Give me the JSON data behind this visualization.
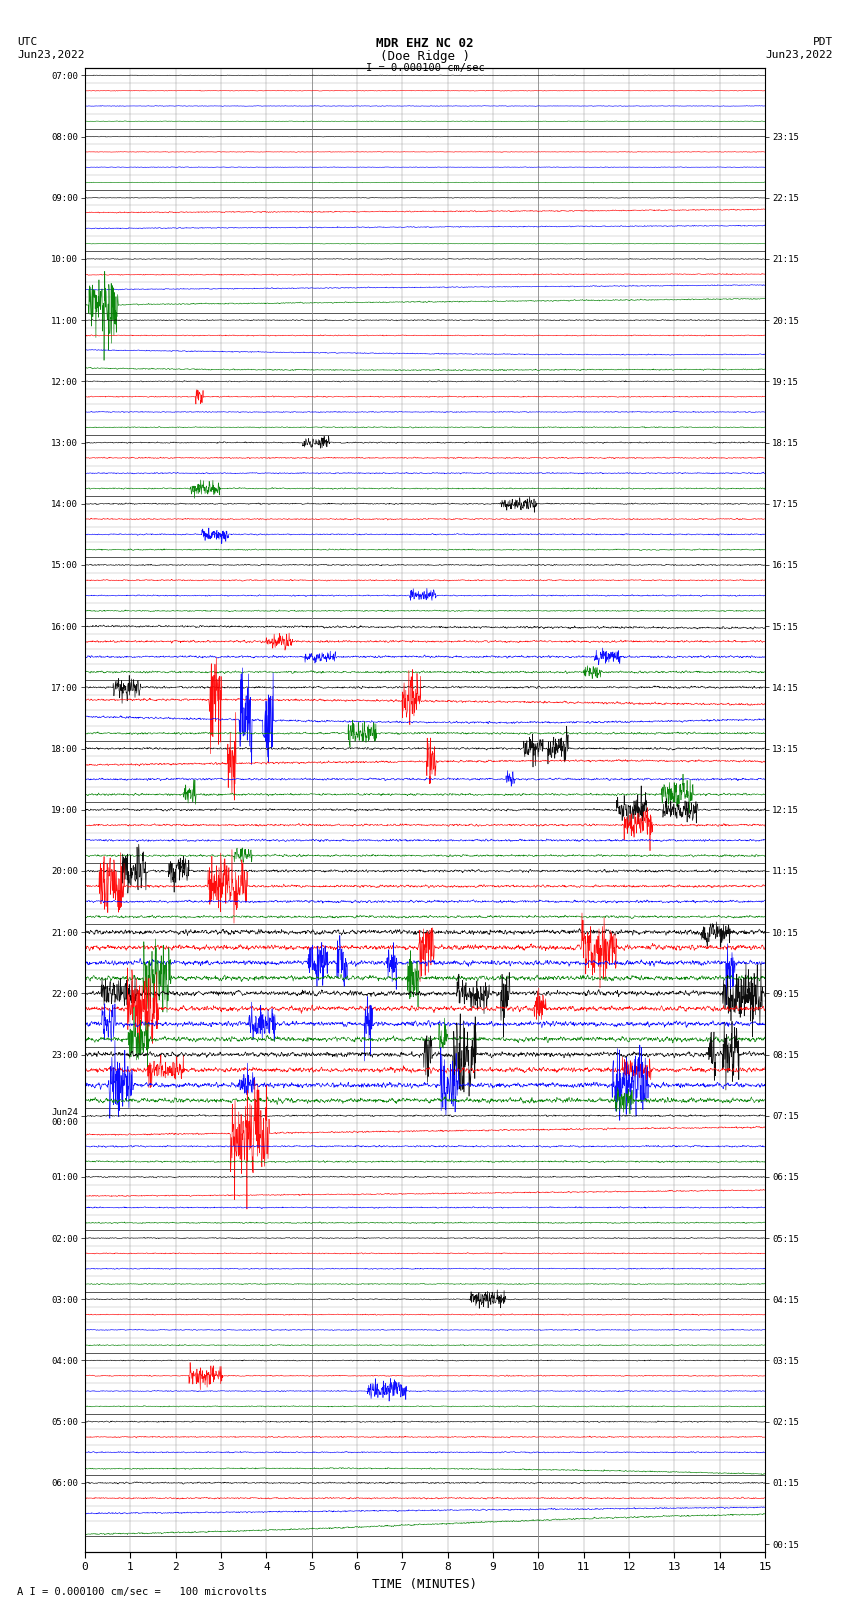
{
  "title_line1": "MDR EHZ NC 02",
  "title_line2": "(Doe Ridge )",
  "title_line3": "I = 0.000100 cm/sec",
  "left_header_1": "UTC",
  "left_header_2": "Jun23,2022",
  "right_header_1": "PDT",
  "right_header_2": "Jun23,2022",
  "xlabel": "TIME (MINUTES)",
  "footer": "A I = 0.000100 cm/sec =   100 microvolts",
  "utc_labels": [
    "07:00",
    "08:00",
    "09:00",
    "10:00",
    "11:00",
    "12:00",
    "13:00",
    "14:00",
    "15:00",
    "16:00",
    "17:00",
    "18:00",
    "19:00",
    "20:00",
    "21:00",
    "22:00",
    "23:00",
    "Jun24\n00:00",
    "01:00",
    "02:00",
    "03:00",
    "04:00",
    "05:00",
    "06:00"
  ],
  "pdt_labels": [
    "00:15",
    "01:15",
    "02:15",
    "03:15",
    "04:15",
    "05:15",
    "06:15",
    "07:15",
    "08:15",
    "09:15",
    "10:15",
    "11:15",
    "12:15",
    "13:15",
    "14:15",
    "15:15",
    "16:15",
    "17:15",
    "18:15",
    "19:15",
    "20:15",
    "21:15",
    "22:15",
    "23:15"
  ],
  "n_hour_rows": 24,
  "traces_per_hour": 4,
  "n_cols": 15,
  "xmin": 0,
  "xmax": 15,
  "colors": [
    "black",
    "red",
    "blue",
    "green"
  ],
  "bg_color": "white",
  "grid_color": "#888888",
  "minor_grid_color": "#cccccc"
}
